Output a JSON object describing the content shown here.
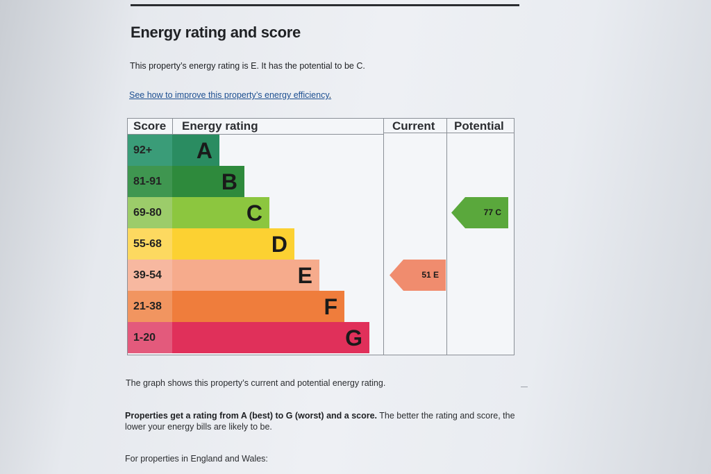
{
  "heading": "Energy rating and score",
  "summary": "This property’s energy rating is E. It has the potential to be C.",
  "improve_link": "See how to improve this property’s energy efficiency",
  "improve_link_end": ".",
  "chart_data": {
    "type": "table",
    "columns": [
      "Score",
      "Energy rating",
      "Current",
      "Potential"
    ],
    "bands": [
      {
        "score": "92+",
        "letter": "A",
        "color": "#2a8c61",
        "score_bg": "#3a9c78"
      },
      {
        "score": "81-91",
        "letter": "B",
        "color": "#2e8a3c",
        "score_bg": "#3f9650"
      },
      {
        "score": "69-80",
        "letter": "C",
        "color": "#8cc63f",
        "score_bg": "#9ccc6a"
      },
      {
        "score": "55-68",
        "letter": "D",
        "color": "#fcd132",
        "score_bg": "#fdd960"
      },
      {
        "score": "39-54",
        "letter": "E",
        "color": "#f6ab8c",
        "score_bg": "#f7b8a0"
      },
      {
        "score": "21-38",
        "letter": "F",
        "color": "#ef7d3c",
        "score_bg": "#f19560"
      },
      {
        "score": "1-20",
        "letter": "G",
        "color": "#e0305a",
        "score_bg": "#e35a7c"
      }
    ],
    "current": {
      "score": 51,
      "letter": "E",
      "label": "51  E",
      "color": "#f08c6e"
    },
    "potential": {
      "score": 77,
      "letter": "C",
      "label": "77  C",
      "color": "#5aa83c"
    }
  },
  "graph_note": "The graph shows this property’s current and potential energy rating.",
  "properties_bold": "Properties get a rating from A (best) to G (worst) and a score.",
  "properties_rest": " The better the rating and score, the lower your energy bills are likely to be.",
  "england_wales": "For properties in England and Wales:"
}
